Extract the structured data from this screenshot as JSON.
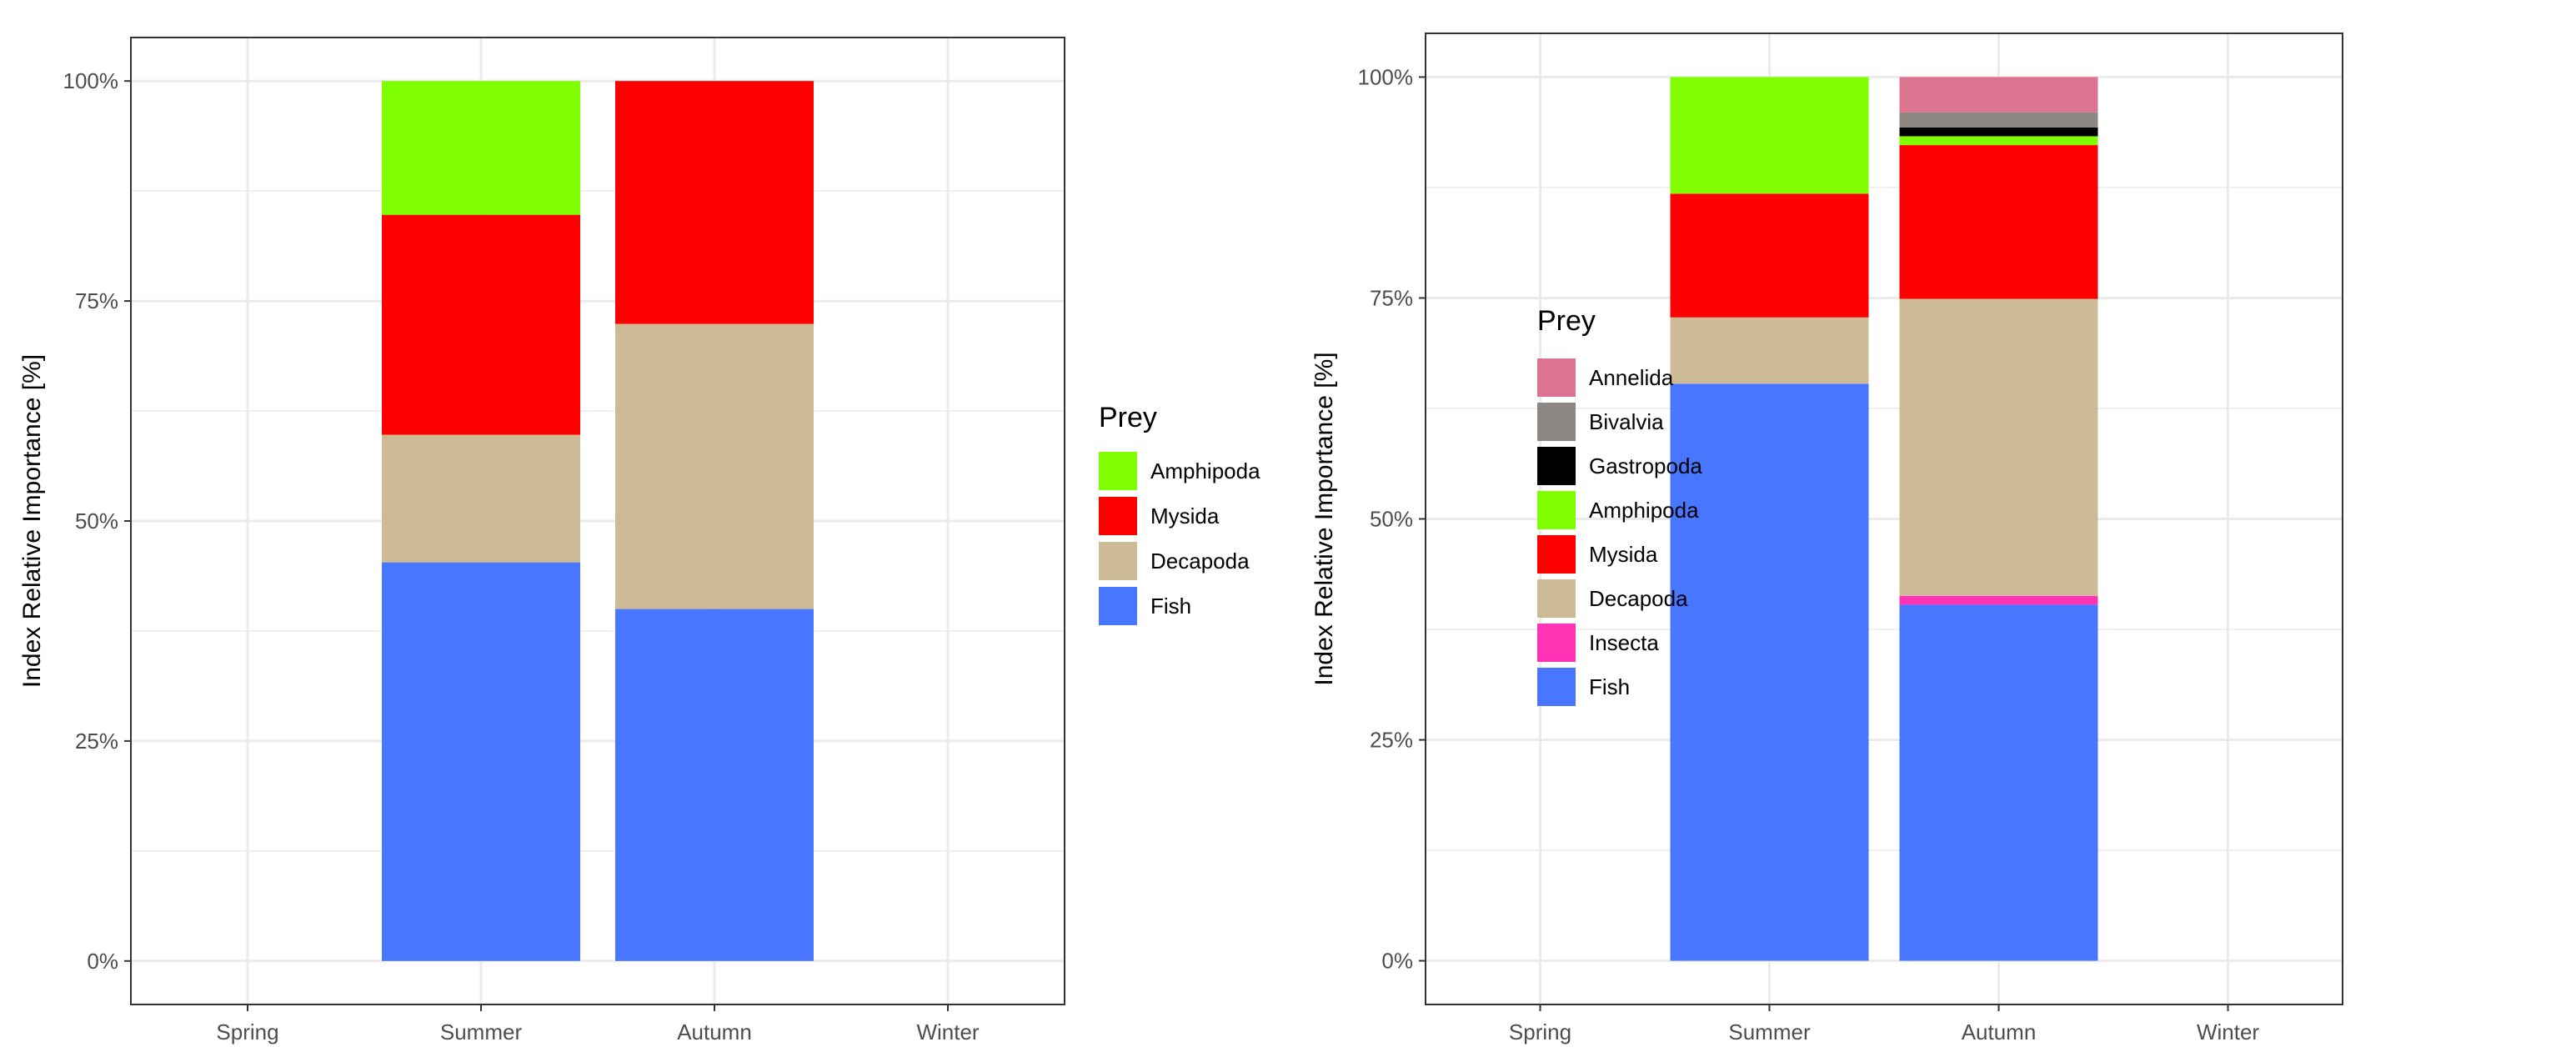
{
  "colors": {
    "Annelida": "#dc7390",
    "Bivalvia": "#8c8783",
    "Gastropoda": "#000000",
    "Amphipoda": "#7fff00",
    "Mysida": "#ff0000",
    "Decapoda": "#cdbb96",
    "Insecta": "#ff33b4",
    "Fish": "#4876ff",
    "panel_bg": "#ffffff",
    "grid": "#ebebeb",
    "border": "#333333",
    "tick_text": "#4d4d4d"
  },
  "chart_data": [
    {
      "type": "bar",
      "stacked": true,
      "categories": [
        "Spring",
        "Summer",
        "Autumn",
        "Winter"
      ],
      "ylabel": "Index Relative Importance [%]",
      "xlabel": "",
      "ylim": [
        0,
        100
      ],
      "yticks": [
        "0%",
        "25%",
        "50%",
        "75%",
        "100%"
      ],
      "grid": true,
      "legend": {
        "title": "Prey",
        "position": "right",
        "entries": [
          "Amphipoda",
          "Mysida",
          "Decapoda",
          "Fish"
        ]
      },
      "series": [
        {
          "name": "Fish",
          "values": [
            null,
            45.3,
            40.0,
            null
          ]
        },
        {
          "name": "Decapoda",
          "values": [
            null,
            14.5,
            32.4,
            null
          ]
        },
        {
          "name": "Mysida",
          "values": [
            null,
            25.0,
            27.6,
            null
          ]
        },
        {
          "name": "Amphipoda",
          "values": [
            null,
            15.2,
            0,
            null
          ]
        }
      ]
    },
    {
      "type": "bar",
      "stacked": true,
      "categories": [
        "Spring",
        "Summer",
        "Autumn",
        "Winter"
      ],
      "ylabel": "Index Relative Importance [%]",
      "xlabel": "",
      "ylim": [
        0,
        100
      ],
      "yticks": [
        "0%",
        "25%",
        "50%",
        "75%",
        "100%"
      ],
      "grid": true,
      "legend": {
        "title": "Prey",
        "position": "right",
        "entries": [
          "Annelida",
          "Bivalvia",
          "Gastropoda",
          "Amphipoda",
          "Mysida",
          "Decapoda",
          "Insecta",
          "Fish"
        ]
      },
      "series": [
        {
          "name": "Fish",
          "values": [
            null,
            65.3,
            40.3,
            null
          ]
        },
        {
          "name": "Insecta",
          "values": [
            null,
            0,
            1.0,
            null
          ]
        },
        {
          "name": "Decapoda",
          "values": [
            null,
            7.5,
            33.6,
            null
          ]
        },
        {
          "name": "Mysida",
          "values": [
            null,
            14.0,
            17.4,
            null
          ]
        },
        {
          "name": "Amphipoda",
          "values": [
            null,
            13.2,
            1.0,
            null
          ]
        },
        {
          "name": "Gastropoda",
          "values": [
            null,
            0,
            1.0,
            null
          ]
        },
        {
          "name": "Bivalvia",
          "values": [
            null,
            0,
            1.7,
            null
          ]
        },
        {
          "name": "Annelida",
          "values": [
            null,
            0,
            4.0,
            null
          ]
        }
      ]
    }
  ]
}
